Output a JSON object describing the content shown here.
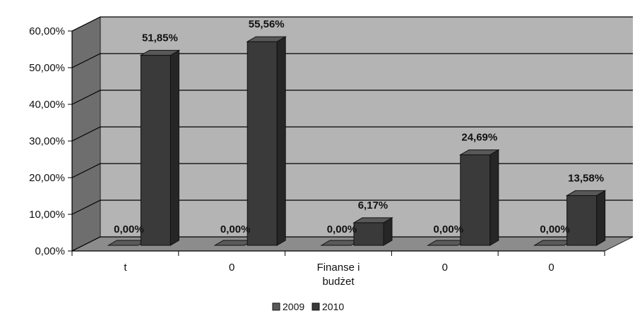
{
  "chart_data": {
    "type": "bar",
    "categories": [
      "t",
      "0",
      "Finanse i budżet",
      "0",
      "0"
    ],
    "category_lines": [
      [
        "t"
      ],
      [
        "0"
      ],
      [
        "Finanse i",
        "budżet"
      ],
      [
        "0"
      ],
      [
        "0"
      ]
    ],
    "series": [
      {
        "name": "2009",
        "values": [
          0,
          0,
          0,
          0,
          0
        ],
        "labels": [
          "0,00%",
          "0,00%",
          "0,00%",
          "0,00%",
          "0,00%"
        ],
        "color": "#5a5a5a"
      },
      {
        "name": "2010",
        "values": [
          51.85,
          55.56,
          6.17,
          24.69,
          13.58
        ],
        "labels": [
          "51,85%",
          "55,56%",
          "6,17%",
          "24,69%",
          "13,58%"
        ],
        "color": "#3a3a3a"
      }
    ],
    "y_ticks": [
      "0,00%",
      "10,00%",
      "20,00%",
      "30,00%",
      "40,00%",
      "50,00%",
      "60,00%"
    ],
    "ylim": [
      0,
      60
    ],
    "grid": true,
    "legend_position": "bottom",
    "title": "",
    "xlabel": "",
    "ylabel": ""
  },
  "colors": {
    "wall": "#b4b4b4",
    "side_wall": "#6e6e6e",
    "floor": "#8c8c8c",
    "bar_front": "#3a3a3a",
    "bar_side": "#262626",
    "bar_top": "#585858"
  }
}
